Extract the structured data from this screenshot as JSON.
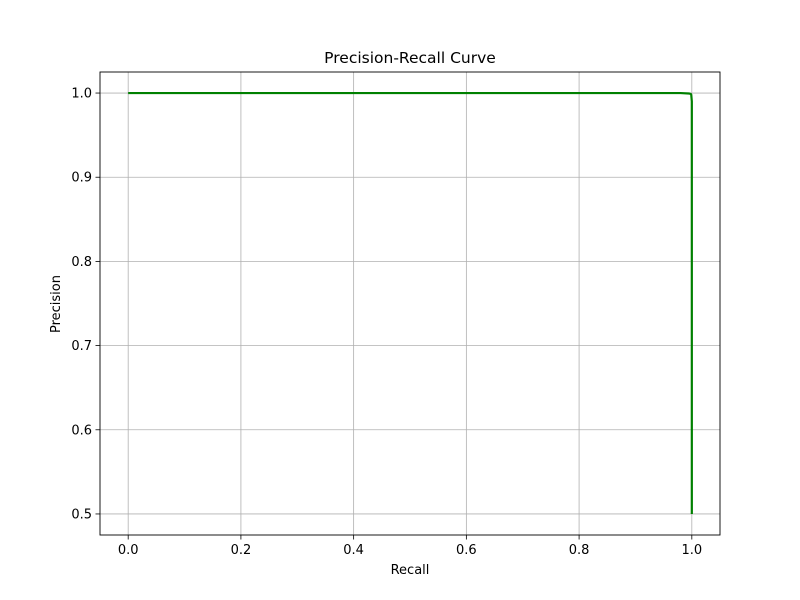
{
  "chart_data": {
    "type": "line",
    "title": "Precision-Recall Curve",
    "xlabel": "Recall",
    "ylabel": "Precision",
    "xlim": [
      -0.05,
      1.05
    ],
    "ylim": [
      0.475,
      1.025
    ],
    "xticks": [
      0.0,
      0.2,
      0.4,
      0.6,
      0.8,
      1.0
    ],
    "xtick_labels": [
      "0.0",
      "0.2",
      "0.4",
      "0.6",
      "0.8",
      "1.0"
    ],
    "yticks": [
      0.5,
      0.6,
      0.7,
      0.8,
      0.9,
      1.0
    ],
    "ytick_labels": [
      "0.5",
      "0.6",
      "0.7",
      "0.8",
      "0.9",
      "1.0"
    ],
    "grid": true,
    "series": [
      {
        "color": "#008000",
        "x": [
          0.0,
          0.2,
          0.4,
          0.6,
          0.8,
          0.9,
          0.95,
          0.98,
          0.995,
          0.998,
          0.999,
          1.0,
          1.0
        ],
        "y": [
          1.0,
          1.0,
          1.0,
          1.0,
          1.0,
          1.0,
          1.0,
          1.0,
          0.9995,
          0.999,
          0.998,
          0.99,
          0.5
        ]
      }
    ]
  }
}
